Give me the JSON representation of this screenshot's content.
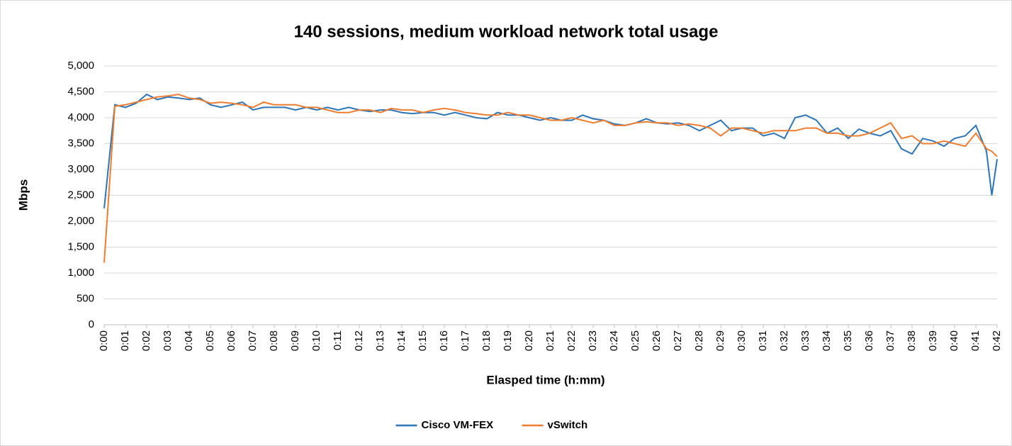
{
  "chart_data": {
    "type": "line",
    "title": "140 sessions, medium workload network total usage",
    "x_label": "Elasped time (h:mm)",
    "y_label": "Mbps",
    "x": [
      0,
      0.5,
      1,
      1.5,
      2,
      2.5,
      3,
      3.5,
      4,
      4.5,
      5,
      5.5,
      6,
      6.5,
      7,
      7.5,
      8,
      8.5,
      9,
      9.5,
      10,
      10.5,
      11,
      11.5,
      12,
      12.5,
      13,
      13.5,
      14,
      14.5,
      15,
      15.5,
      16,
      16.5,
      17,
      17.5,
      18,
      18.5,
      19,
      19.5,
      20,
      20.5,
      21,
      21.5,
      22,
      22.5,
      23,
      23.5,
      24,
      24.5,
      25,
      25.5,
      26,
      26.5,
      27,
      27.5,
      28,
      28.5,
      29,
      29.5,
      30,
      30.5,
      31,
      31.5,
      32,
      32.5,
      33,
      33.5,
      34,
      34.5,
      35,
      35.5,
      36,
      36.5,
      37,
      37.5,
      38,
      38.5,
      39,
      39.5,
      40,
      40.5,
      41,
      41.5,
      41.75,
      42
    ],
    "series": [
      {
        "name": "Cisco VM-FEX",
        "color": "#2e75b6",
        "values": [
          2250,
          4250,
          4200,
          4280,
          4450,
          4350,
          4400,
          4380,
          4350,
          4380,
          4250,
          4200,
          4250,
          4300,
          4150,
          4200,
          4200,
          4200,
          4150,
          4200,
          4150,
          4200,
          4150,
          4200,
          4150,
          4120,
          4150,
          4150,
          4100,
          4080,
          4100,
          4100,
          4050,
          4100,
          4050,
          4000,
          3980,
          4100,
          4050,
          4050,
          4000,
          3950,
          4000,
          3950,
          3950,
          4050,
          3980,
          3950,
          3880,
          3850,
          3900,
          3980,
          3900,
          3880,
          3900,
          3850,
          3750,
          3850,
          3950,
          3750,
          3800,
          3800,
          3650,
          3700,
          3600,
          4000,
          4050,
          3950,
          3700,
          3800,
          3600,
          3780,
          3700,
          3650,
          3750,
          3400,
          3300,
          3600,
          3550,
          3450,
          3600,
          3650,
          3850,
          3350,
          2500,
          3200
        ]
      },
      {
        "name": "vSwitch",
        "color": "#ed7d31",
        "values": [
          1200,
          4220,
          4250,
          4300,
          4350,
          4400,
          4420,
          4450,
          4380,
          4350,
          4280,
          4300,
          4280,
          4250,
          4200,
          4300,
          4250,
          4250,
          4250,
          4200,
          4200,
          4150,
          4100,
          4100,
          4150,
          4150,
          4100,
          4180,
          4150,
          4150,
          4100,
          4150,
          4180,
          4150,
          4100,
          4080,
          4050,
          4050,
          4100,
          4050,
          4050,
          4000,
          3950,
          3950,
          4000,
          3950,
          3900,
          3950,
          3850,
          3850,
          3900,
          3920,
          3900,
          3900,
          3850,
          3880,
          3850,
          3800,
          3650,
          3800,
          3800,
          3750,
          3700,
          3750,
          3750,
          3750,
          3800,
          3800,
          3700,
          3700,
          3650,
          3650,
          3700,
          3800,
          3900,
          3600,
          3650,
          3500,
          3500,
          3550,
          3500,
          3450,
          3700,
          3400,
          3350,
          3250
        ]
      }
    ],
    "xlim": [
      0,
      42
    ],
    "xticks": [
      {
        "value": 0,
        "label": "0:00"
      },
      {
        "value": 1,
        "label": "0:01"
      },
      {
        "value": 2,
        "label": "0:02"
      },
      {
        "value": 3,
        "label": "0:03"
      },
      {
        "value": 4,
        "label": "0:04"
      },
      {
        "value": 5,
        "label": "0:05"
      },
      {
        "value": 6,
        "label": "0:06"
      },
      {
        "value": 7,
        "label": "0:07"
      },
      {
        "value": 8,
        "label": "0:08"
      },
      {
        "value": 9,
        "label": "0:09"
      },
      {
        "value": 10,
        "label": "0:10"
      },
      {
        "value": 11,
        "label": "0:11"
      },
      {
        "value": 12,
        "label": "0:12"
      },
      {
        "value": 13,
        "label": "0:13"
      },
      {
        "value": 14,
        "label": "0:14"
      },
      {
        "value": 15,
        "label": "0:15"
      },
      {
        "value": 16,
        "label": "0:16"
      },
      {
        "value": 17,
        "label": "0:17"
      },
      {
        "value": 18,
        "label": "0:18"
      },
      {
        "value": 19,
        "label": "0:19"
      },
      {
        "value": 20,
        "label": "0:20"
      },
      {
        "value": 21,
        "label": "0:21"
      },
      {
        "value": 22,
        "label": "0:22"
      },
      {
        "value": 23,
        "label": "0:23"
      },
      {
        "value": 24,
        "label": "0:24"
      },
      {
        "value": 25,
        "label": "0:25"
      },
      {
        "value": 26,
        "label": "0:26"
      },
      {
        "value": 27,
        "label": "0:27"
      },
      {
        "value": 28,
        "label": "0:28"
      },
      {
        "value": 29,
        "label": "0:29"
      },
      {
        "value": 30,
        "label": "0:30"
      },
      {
        "value": 31,
        "label": "0:31"
      },
      {
        "value": 32,
        "label": "0:32"
      },
      {
        "value": 33,
        "label": "0:33"
      },
      {
        "value": 34,
        "label": "0:34"
      },
      {
        "value": 35,
        "label": "0:35"
      },
      {
        "value": 36,
        "label": "0:36"
      },
      {
        "value": 37,
        "label": "0:37"
      },
      {
        "value": 38,
        "label": "0:38"
      },
      {
        "value": 39,
        "label": "0:39"
      },
      {
        "value": 40,
        "label": "0:40"
      },
      {
        "value": 41,
        "label": "0:41"
      },
      {
        "value": 42,
        "label": "0:42"
      }
    ],
    "ylim": [
      0,
      5000
    ],
    "yticks": [
      0,
      {
        "value": 500,
        "label": "500"
      },
      {
        "value": 1000,
        "label": "1,000"
      },
      {
        "value": 1500,
        "label": "1,500"
      },
      {
        "value": 2000,
        "label": "2,000"
      },
      {
        "value": 2500,
        "label": "2,500"
      },
      {
        "value": 3000,
        "label": "3,000"
      },
      {
        "value": 3500,
        "label": "3,500"
      },
      {
        "value": 4000,
        "label": "4,000"
      },
      {
        "value": 4500,
        "label": "4,500"
      },
      {
        "value": 5000,
        "label": "5,000"
      }
    ],
    "grid": true,
    "legend": "bottom"
  }
}
